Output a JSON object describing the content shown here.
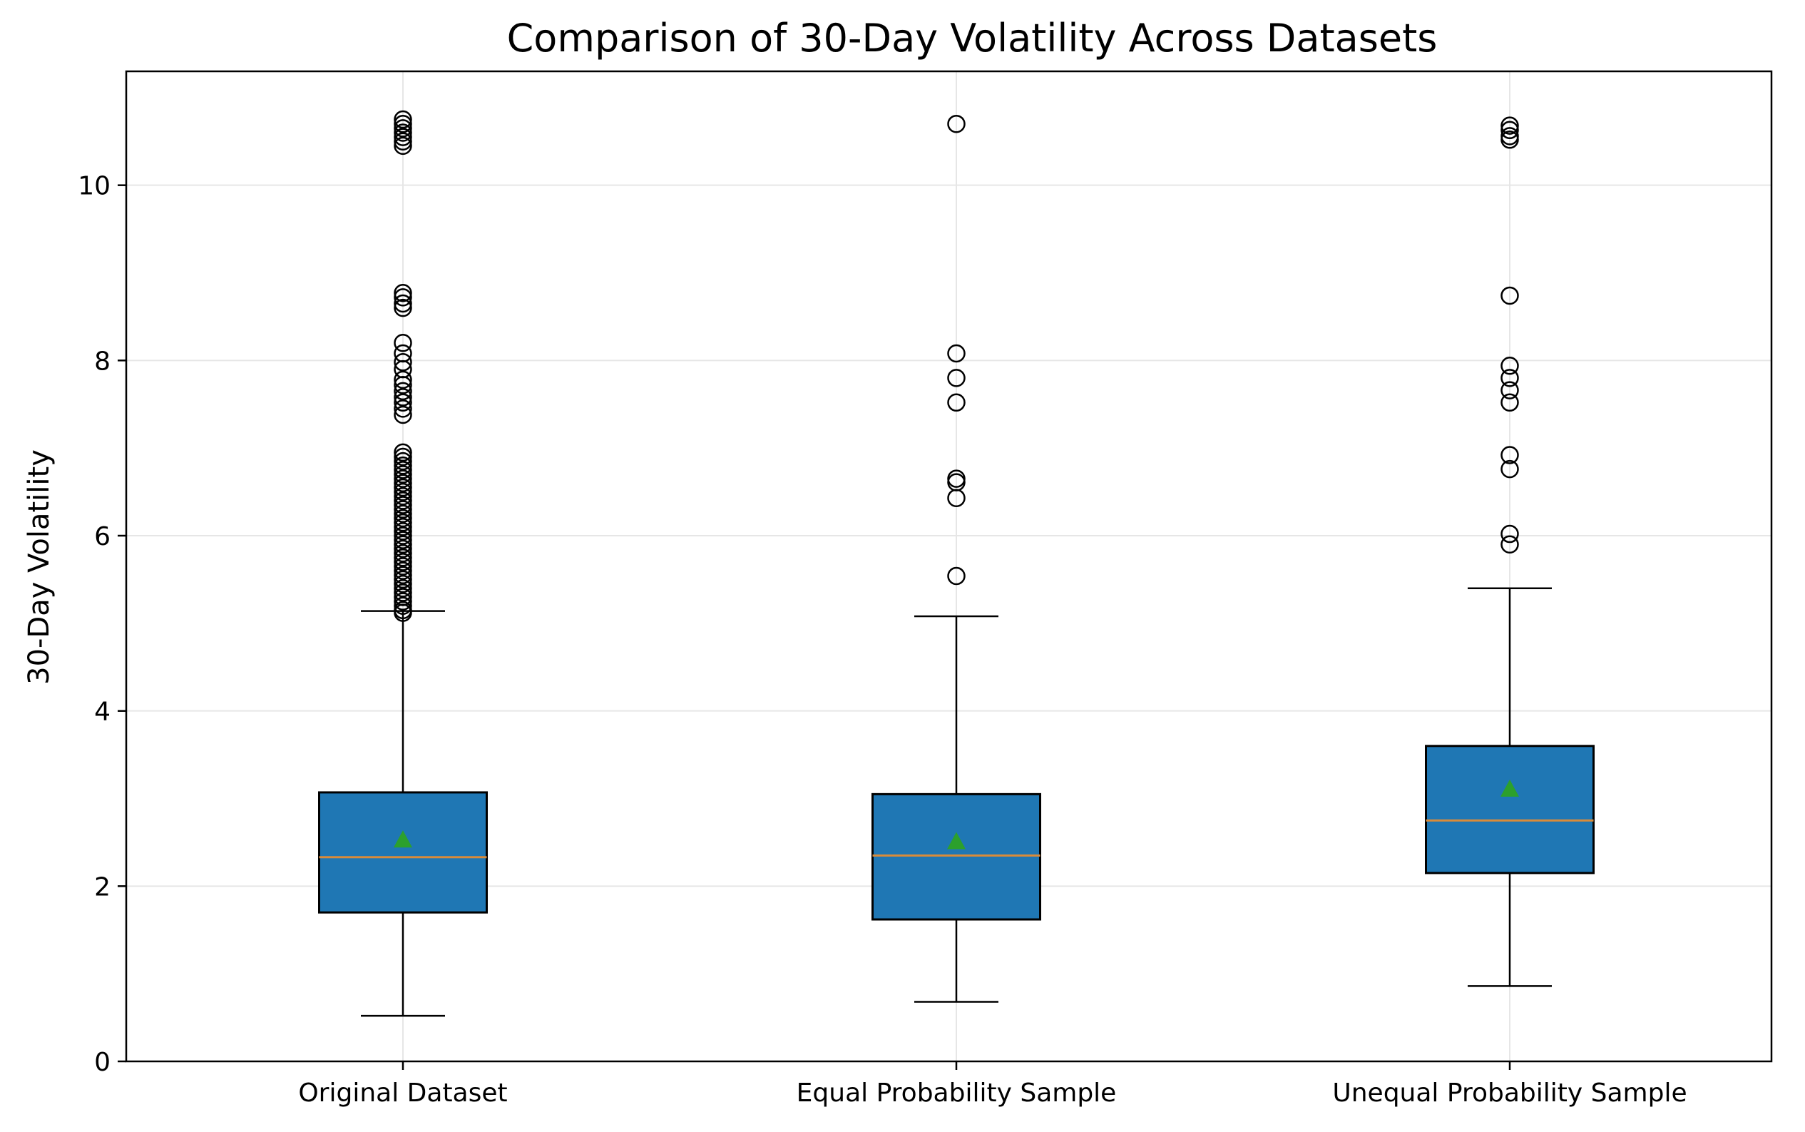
{
  "chart_data": {
    "type": "box",
    "title": "Comparison of 30-Day Volatility Across Datasets",
    "xlabel": "",
    "ylabel": "30-Day Volatility",
    "ylim": [
      0,
      11.3
    ],
    "yticks": [
      0,
      2,
      4,
      6,
      8,
      10
    ],
    "grid": true,
    "legend": "none",
    "colors": {
      "box_fill": "#1f77b4",
      "median": "#d98b3a",
      "mean_marker": "#2ca02c",
      "outline": "#000000",
      "grid": "#e6e6e6"
    },
    "categories": [
      "Original Dataset",
      "Equal Probability Sample",
      "Unequal Probability Sample"
    ],
    "series": [
      {
        "category": "Original Dataset",
        "whisker_low": 0.52,
        "q1": 1.7,
        "median": 2.33,
        "q3": 3.07,
        "whisker_high": 5.14,
        "mean": 2.52,
        "outliers": [
          5.12,
          5.15,
          5.2,
          5.25,
          5.3,
          5.35,
          5.4,
          5.45,
          5.5,
          5.55,
          5.6,
          5.65,
          5.7,
          5.75,
          5.8,
          5.85,
          5.9,
          5.95,
          6.0,
          6.05,
          6.1,
          6.15,
          6.2,
          6.25,
          6.3,
          6.35,
          6.4,
          6.45,
          6.5,
          6.55,
          6.6,
          6.65,
          6.7,
          6.75,
          6.8,
          6.85,
          6.9,
          6.95,
          7.38,
          7.45,
          7.52,
          7.58,
          7.65,
          7.72,
          7.78,
          7.9,
          7.98,
          8.08,
          8.2,
          8.6,
          8.65,
          8.72,
          8.77,
          10.45,
          10.5,
          10.55,
          10.6,
          10.65,
          10.7,
          10.75
        ]
      },
      {
        "category": "Equal Probability Sample",
        "whisker_low": 0.68,
        "q1": 1.62,
        "median": 2.35,
        "q3": 3.05,
        "whisker_high": 5.08,
        "mean": 2.5,
        "outliers": [
          5.54,
          6.43,
          6.61,
          6.65,
          7.52,
          7.8,
          8.08,
          10.7
        ]
      },
      {
        "category": "Unequal Probability Sample",
        "whisker_low": 0.86,
        "q1": 2.15,
        "median": 2.75,
        "q3": 3.6,
        "whisker_high": 5.4,
        "mean": 3.1,
        "outliers": [
          5.9,
          6.02,
          6.76,
          6.92,
          7.52,
          7.66,
          7.8,
          7.94,
          8.74,
          10.52,
          10.56,
          10.63,
          10.68
        ]
      }
    ]
  }
}
